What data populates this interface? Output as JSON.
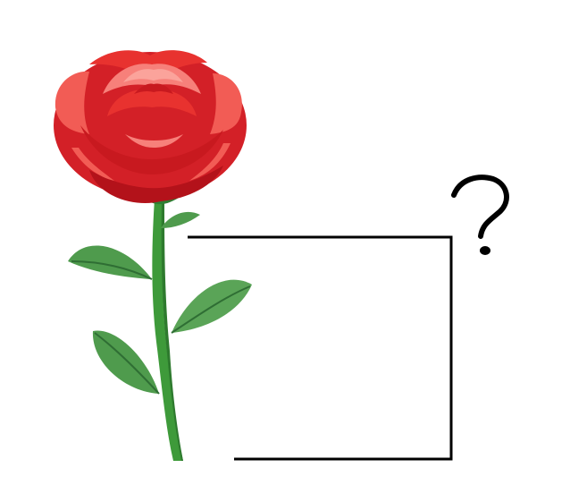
{
  "scene": {
    "subject": "rose",
    "decoration": "question-mark",
    "colors": {
      "petal": "#e8322f",
      "petal_dark": "#b3121a",
      "petal_light": "#f7807a",
      "stem": "#3e9a3a",
      "leaf": "#4f9b4d",
      "leaf_dark": "#2f6e34",
      "line": "#000000"
    }
  }
}
